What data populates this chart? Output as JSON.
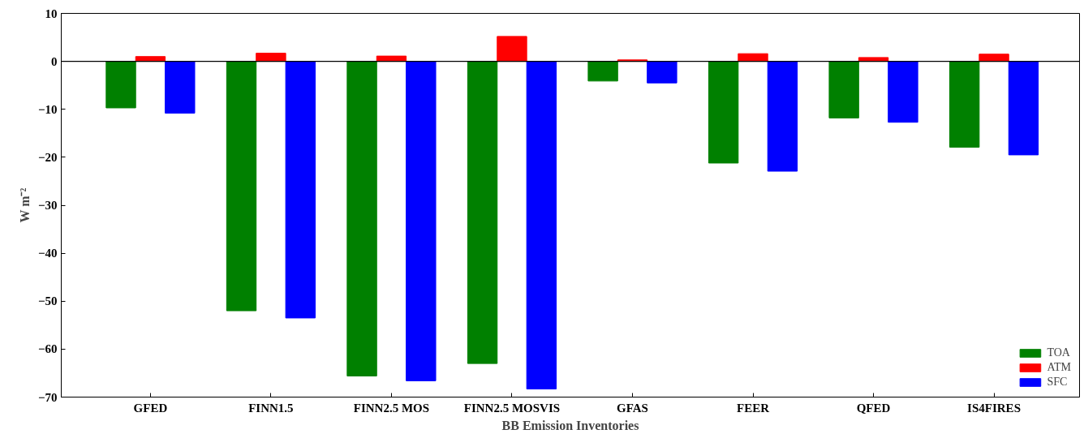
{
  "chart_data": {
    "type": "bar",
    "xlabel": "BB Emission Inventories",
    "ylabel": "W m⁻²",
    "categories": [
      "GFED",
      "FINN1.5",
      "FINN2.5 MOS",
      "FINN2.5 MOSVIS",
      "GFAS",
      "FEER",
      "QFED",
      "IS4FIRES"
    ],
    "series": [
      {
        "name": "TOA",
        "color": "#008000",
        "values": [
          -9.7,
          -52.0,
          -65.6,
          -63.0,
          -4.1,
          -21.2,
          -11.8,
          -17.9
        ]
      },
      {
        "name": "ATM",
        "color": "#ff0000",
        "values": [
          1.0,
          1.7,
          1.1,
          5.2,
          0.3,
          1.6,
          0.8,
          1.5
        ]
      },
      {
        "name": "SFC",
        "color": "#0000ff",
        "values": [
          -10.8,
          -53.5,
          -66.6,
          -68.3,
          -4.5,
          -22.9,
          -12.7,
          -19.5
        ]
      }
    ],
    "ylim": [
      -70,
      10
    ],
    "yticks": [
      {
        "value": -70,
        "label": "−70"
      },
      {
        "value": -60,
        "label": "−60"
      },
      {
        "value": -50,
        "label": "−50"
      },
      {
        "value": -40,
        "label": "−40"
      },
      {
        "value": -30,
        "label": "−30"
      },
      {
        "value": -20,
        "label": "−20"
      },
      {
        "value": -10,
        "label": "−10"
      },
      0,
      10
    ],
    "ref_lines": [
      {
        "axis": "y",
        "value": 0,
        "color": "#000000"
      }
    ],
    "grid": false,
    "legend": "bottom right"
  }
}
